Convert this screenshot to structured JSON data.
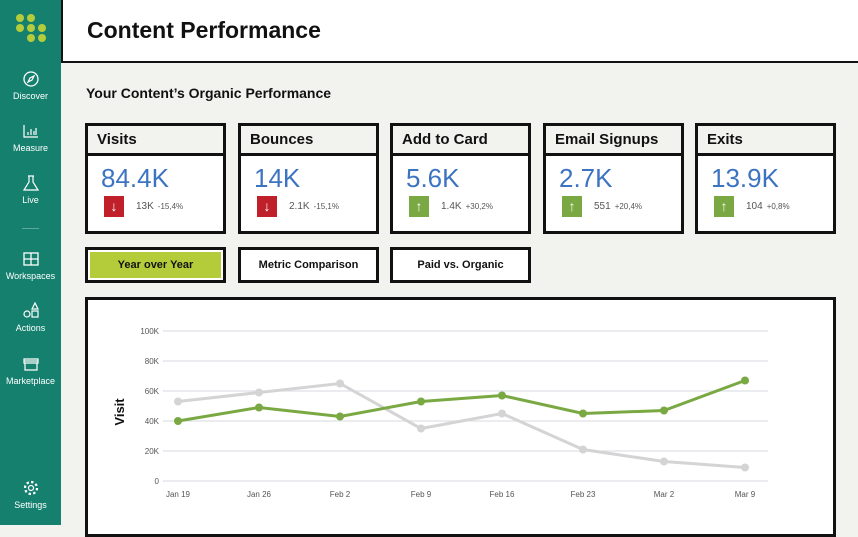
{
  "sidebar": {
    "items": [
      {
        "label": "Discover",
        "icon": "compass-icon"
      },
      {
        "label": "Measure",
        "icon": "bar-chart-icon"
      },
      {
        "label": "Live",
        "icon": "flask-icon"
      },
      {
        "label": "Workspaces",
        "icon": "grid-icon"
      },
      {
        "label": "Actions",
        "icon": "shapes-icon"
      },
      {
        "label": "Marketplace",
        "icon": "store-icon"
      },
      {
        "label": "Settings",
        "icon": "gear-icon"
      }
    ]
  },
  "header": {
    "title": "Content Performance"
  },
  "section_title": "Your Content’s Organic Performance",
  "cards": [
    {
      "title": "Visits",
      "value": "84.4K",
      "delta": "13K",
      "pct": "-15,4%",
      "trend": "down"
    },
    {
      "title": "Bounces",
      "value": "14K",
      "delta": "2.1K",
      "pct": "-15,1%",
      "trend": "down"
    },
    {
      "title": "Add to Card",
      "value": "5.6K",
      "delta": "1.4K",
      "pct": "+30,2%",
      "trend": "up"
    },
    {
      "title": "Email Signups",
      "value": "2.7K",
      "delta": "551",
      "pct": "+20,4%",
      "trend": "up"
    },
    {
      "title": "Exits",
      "value": "13.9K",
      "delta": "104",
      "pct": "+0,8%",
      "trend": "up"
    }
  ],
  "colors": {
    "up": "#7aa843",
    "down": "#c0202a",
    "value": "#3d74c2",
    "accent": "#b5cc3a",
    "sidebar": "#16806f"
  },
  "tabs": [
    {
      "label": "Year over Year",
      "active": true
    },
    {
      "label": "Metric Comparison",
      "active": false
    },
    {
      "label": "Paid vs. Organic",
      "active": false
    }
  ],
  "chart_data": {
    "type": "line",
    "ylabel": "Visit",
    "categories": [
      "Jan 19",
      "Jan 26",
      "Feb 2",
      "Feb 9",
      "Feb 16",
      "Feb 23",
      "Mar 2",
      "Mar 9"
    ],
    "yticks": [
      "0",
      "20K",
      "40K",
      "60K",
      "80K",
      "100K"
    ],
    "ylim": [
      0,
      100000
    ],
    "grid": true,
    "series": [
      {
        "color": "#7aa843",
        "values": [
          40000,
          49000,
          43000,
          53000,
          57000,
          45000,
          47000,
          67000
        ]
      },
      {
        "color": "#d4d4d4",
        "values": [
          53000,
          59000,
          65000,
          35000,
          45000,
          21000,
          13000,
          9000
        ]
      }
    ]
  }
}
